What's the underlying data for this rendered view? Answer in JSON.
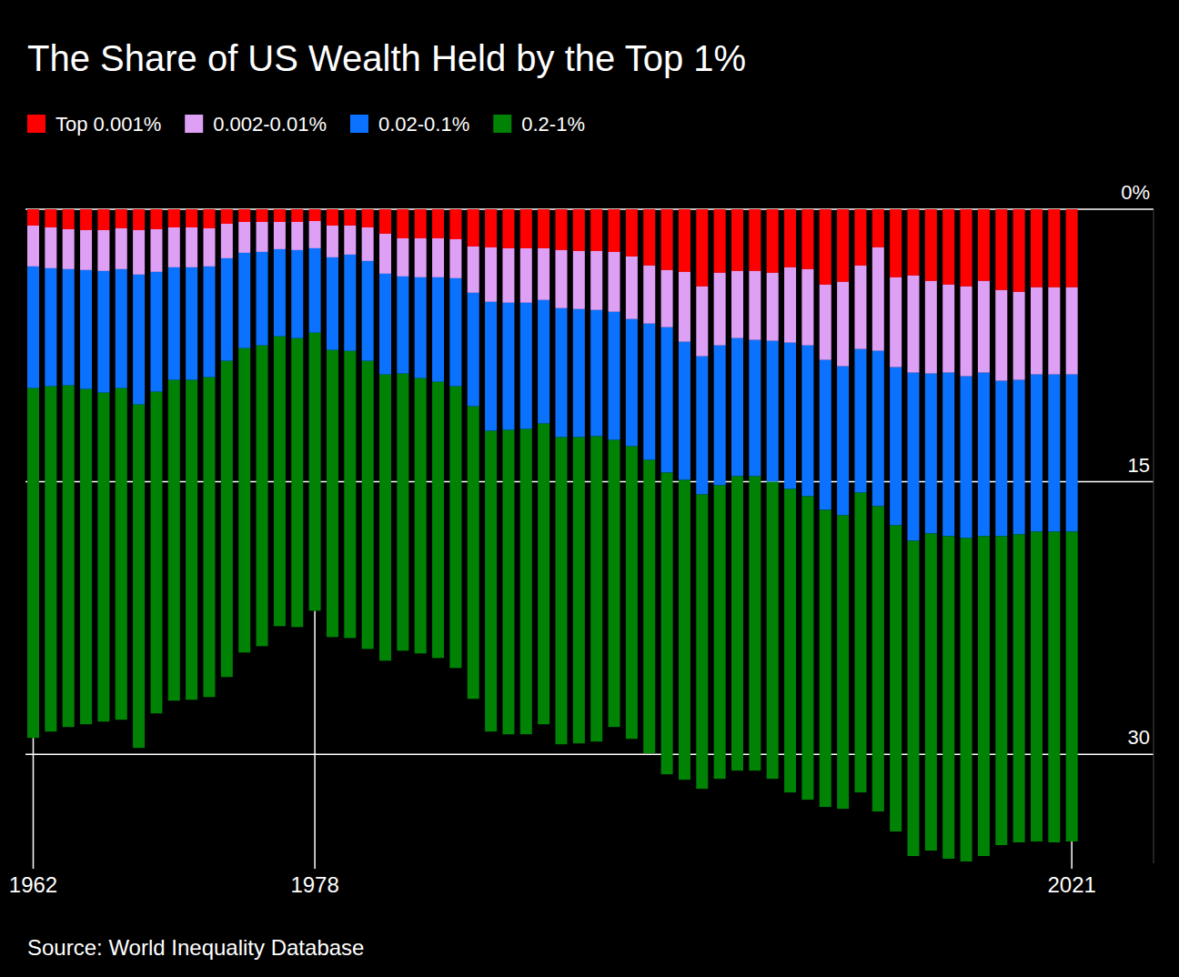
{
  "chart_data": {
    "type": "bar",
    "title": "The Share of US Wealth Held by the Top 1%",
    "source": "Source: World Inequality Database",
    "stacked": true,
    "grid": true,
    "legend": "top-left",
    "categories": [
      "1962",
      null,
      null,
      null,
      null,
      null,
      null,
      null,
      null,
      null,
      null,
      null,
      null,
      null,
      null,
      null,
      "1978",
      null,
      null,
      null,
      null,
      null,
      null,
      null,
      null,
      null,
      null,
      null,
      null,
      null,
      null,
      null,
      null,
      null,
      null,
      null,
      null,
      null,
      null,
      null,
      null,
      null,
      null,
      null,
      null,
      null,
      null,
      null,
      null,
      null,
      null,
      null,
      null,
      null,
      null,
      null,
      null,
      null,
      null,
      "2021"
    ],
    "ylim": [
      0,
      36
    ],
    "yticks": [
      {
        "value": 0,
        "label": "0%"
      },
      15,
      30
    ],
    "series": [
      {
        "name": "Top 0.001%",
        "color": "#ff0000",
        "values": [
          0.9,
          1.0,
          1.1,
          1.15,
          1.15,
          1.05,
          1.15,
          1.1,
          1.0,
          1.0,
          1.05,
          0.8,
          0.7,
          0.7,
          0.7,
          0.7,
          0.65,
          0.9,
          0.9,
          1.0,
          1.35,
          1.6,
          1.6,
          1.6,
          1.65,
          2.05,
          2.1,
          2.15,
          2.15,
          2.15,
          2.25,
          2.3,
          2.3,
          2.35,
          2.6,
          3.1,
          3.35,
          3.45,
          4.25,
          3.5,
          3.4,
          3.4,
          3.5,
          3.2,
          3.3,
          4.15,
          4.0,
          3.1,
          2.1,
          3.75,
          3.65,
          3.95,
          4.15,
          4.25,
          3.95,
          4.45,
          4.55,
          4.3,
          4.3,
          4.3
        ]
      },
      {
        "name": "0.002-0.01%",
        "color": "#dda0f5",
        "values": [
          2.25,
          2.25,
          2.2,
          2.2,
          2.25,
          2.25,
          2.45,
          2.35,
          2.2,
          2.2,
          2.1,
          1.9,
          1.7,
          1.65,
          1.5,
          1.55,
          1.5,
          1.75,
          1.6,
          1.85,
          2.2,
          2.1,
          2.15,
          2.15,
          2.15,
          2.55,
          3.0,
          3.0,
          3.0,
          2.85,
          3.2,
          3.2,
          3.25,
          3.3,
          3.45,
          3.2,
          3.15,
          3.85,
          3.85,
          4.0,
          3.7,
          3.8,
          3.75,
          4.15,
          4.2,
          4.15,
          4.65,
          4.6,
          5.7,
          4.95,
          5.35,
          5.1,
          4.85,
          4.95,
          5.05,
          5.0,
          4.85,
          4.8,
          4.8,
          4.8
        ]
      },
      {
        "name": "0.02-0.1%",
        "color": "#0a72ff",
        "values": [
          6.7,
          6.5,
          6.4,
          6.55,
          6.7,
          6.55,
          7.15,
          6.6,
          6.2,
          6.2,
          6.1,
          5.65,
          5.25,
          5.15,
          4.8,
          4.85,
          4.65,
          5.1,
          5.3,
          5.5,
          5.55,
          5.35,
          5.55,
          5.75,
          5.95,
          6.25,
          7.1,
          7.0,
          6.95,
          6.8,
          7.1,
          7.05,
          6.95,
          7.05,
          7.0,
          7.5,
          8.0,
          7.6,
          7.6,
          7.7,
          7.6,
          7.5,
          7.75,
          8.05,
          8.3,
          8.25,
          8.2,
          7.9,
          8.55,
          8.7,
          9.25,
          8.8,
          9.0,
          8.9,
          9.0,
          8.55,
          8.5,
          8.65,
          8.65,
          8.65
        ]
      },
      {
        "name": "0.2-1%",
        "color": "#008205",
        "values": [
          19.25,
          19.0,
          18.8,
          18.45,
          18.1,
          18.25,
          18.9,
          17.7,
          17.65,
          17.6,
          17.6,
          17.4,
          16.75,
          16.55,
          15.95,
          15.9,
          15.3,
          15.8,
          15.8,
          15.85,
          15.75,
          15.25,
          15.15,
          15.2,
          15.5,
          16.1,
          16.55,
          16.75,
          16.8,
          16.55,
          16.9,
          16.85,
          16.8,
          15.8,
          16.1,
          16.15,
          16.6,
          16.5,
          16.2,
          16.15,
          16.2,
          16.2,
          16.35,
          16.7,
          16.7,
          16.35,
          16.15,
          16.5,
          16.8,
          16.85,
          17.35,
          17.45,
          17.75,
          17.8,
          17.6,
          17.0,
          16.95,
          17.05,
          17.1,
          17.05
        ]
      }
    ]
  }
}
